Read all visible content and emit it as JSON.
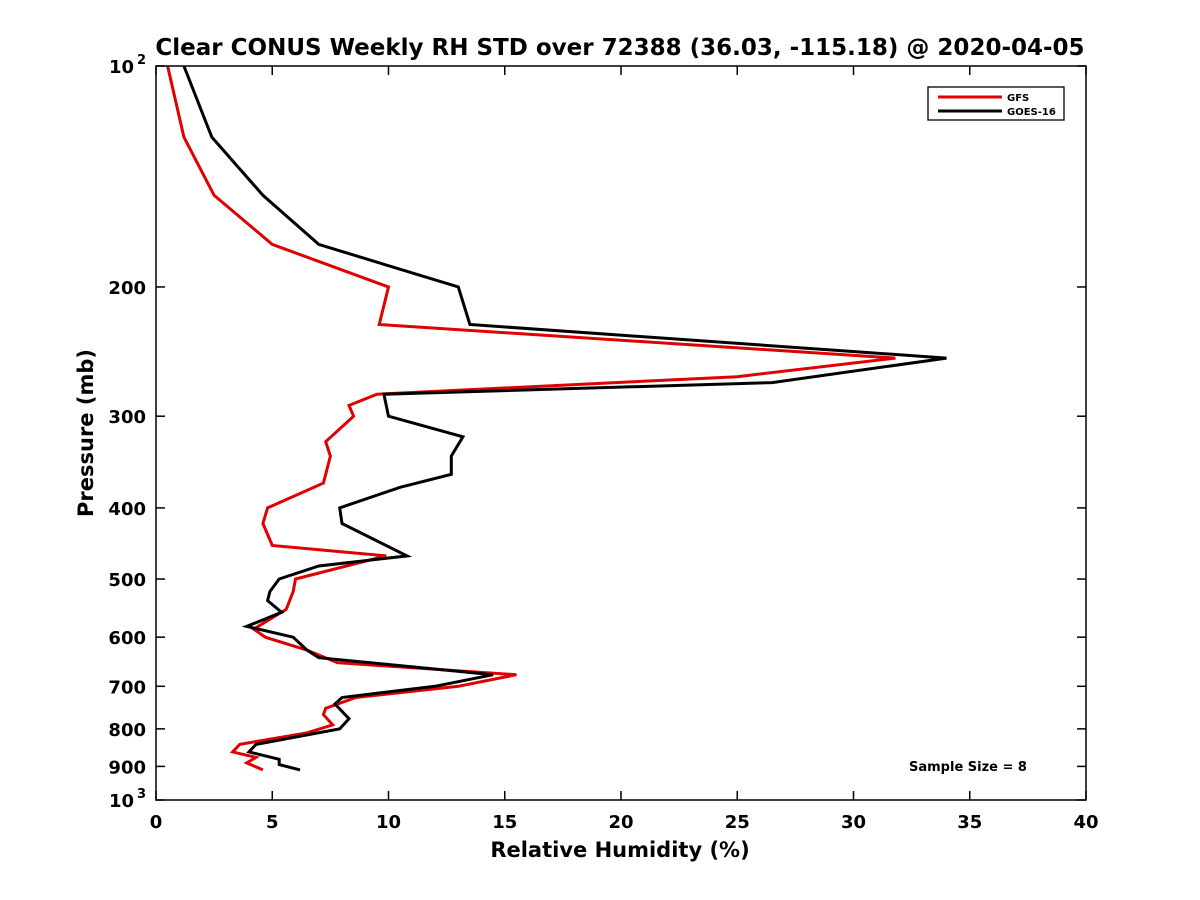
{
  "chart_data": {
    "type": "line",
    "title": "Clear CONUS Weekly RH STD over 72388 (36.03, -115.18) @ 2020-04-05",
    "xlabel": "Relative Humidity (%)",
    "ylabel": "Pressure (mb)",
    "xlim": [
      0,
      40
    ],
    "ylim": [
      100,
      1000
    ],
    "y_scale": "log",
    "y_reversed": true,
    "x_ticks": [
      0,
      5,
      10,
      15,
      20,
      25,
      30,
      35,
      40
    ],
    "x_tick_labels": [
      "0",
      "5",
      "10",
      "15",
      "20",
      "25",
      "30",
      "35",
      "40"
    ],
    "y_ticks": [
      100,
      200,
      300,
      400,
      500,
      600,
      700,
      800,
      900,
      1000
    ],
    "y_tick_labels": [
      {
        "base": "10",
        "exp": "2"
      },
      {
        "base": "200",
        "exp": ""
      },
      {
        "base": "300",
        "exp": ""
      },
      {
        "base": "400",
        "exp": ""
      },
      {
        "base": "500",
        "exp": ""
      },
      {
        "base": "600",
        "exp": ""
      },
      {
        "base": "700",
        "exp": ""
      },
      {
        "base": "800",
        "exp": ""
      },
      {
        "base": "900",
        "exp": ""
      },
      {
        "base": "10",
        "exp": "3"
      }
    ],
    "grid": false,
    "legend_position": "top-right",
    "annotation": "Sample Size = 8",
    "series": [
      {
        "name": "GFS",
        "color": "#e00000",
        "points": [
          [
            0.5,
            100
          ],
          [
            1.2,
            125
          ],
          [
            2.5,
            150
          ],
          [
            5,
            175
          ],
          [
            10,
            200
          ],
          [
            9.6,
            225
          ],
          [
            31.8,
            250
          ],
          [
            25,
            265
          ],
          [
            9.5,
            280
          ],
          [
            8.3,
            290
          ],
          [
            8.5,
            300
          ],
          [
            7.3,
            325
          ],
          [
            7.5,
            340
          ],
          [
            7.2,
            370
          ],
          [
            4.8,
            400
          ],
          [
            4.6,
            420
          ],
          [
            5,
            450
          ],
          [
            9.9,
            465
          ],
          [
            6,
            500
          ],
          [
            5.9,
            520
          ],
          [
            5.6,
            550
          ],
          [
            4.2,
            585
          ],
          [
            4.7,
            600
          ],
          [
            6.5,
            625
          ],
          [
            7.8,
            650
          ],
          [
            15.5,
            675
          ],
          [
            13,
            700
          ],
          [
            8.6,
            725
          ],
          [
            7.3,
            750
          ],
          [
            7.2,
            765
          ],
          [
            7.6,
            790
          ],
          [
            6.5,
            810
          ],
          [
            3.6,
            840
          ],
          [
            3.3,
            860
          ],
          [
            4.3,
            875
          ],
          [
            3.9,
            890
          ],
          [
            4.6,
            910
          ]
        ]
      },
      {
        "name": "GOES-16",
        "color": "#000000",
        "points": [
          [
            1.2,
            100
          ],
          [
            2.4,
            125
          ],
          [
            4.6,
            150
          ],
          [
            7,
            175
          ],
          [
            13,
            200
          ],
          [
            13.5,
            225
          ],
          [
            34,
            250
          ],
          [
            26.5,
            270
          ],
          [
            9.8,
            280
          ],
          [
            10,
            300
          ],
          [
            13.2,
            320
          ],
          [
            12.7,
            340
          ],
          [
            12.7,
            360
          ],
          [
            10.5,
            375
          ],
          [
            7.9,
            400
          ],
          [
            8,
            420
          ],
          [
            10.8,
            465
          ],
          [
            7,
            480
          ],
          [
            5.3,
            500
          ],
          [
            4.9,
            520
          ],
          [
            4.8,
            535
          ],
          [
            5.4,
            555
          ],
          [
            3.9,
            580
          ],
          [
            5.9,
            600
          ],
          [
            6.5,
            625
          ],
          [
            7,
            640
          ],
          [
            14.5,
            675
          ],
          [
            12,
            700
          ],
          [
            8,
            725
          ],
          [
            7.7,
            740
          ],
          [
            8.3,
            775
          ],
          [
            7.9,
            800
          ],
          [
            4.3,
            840
          ],
          [
            4,
            860
          ],
          [
            5.3,
            880
          ],
          [
            5.3,
            895
          ],
          [
            6.2,
            910
          ]
        ]
      }
    ]
  }
}
